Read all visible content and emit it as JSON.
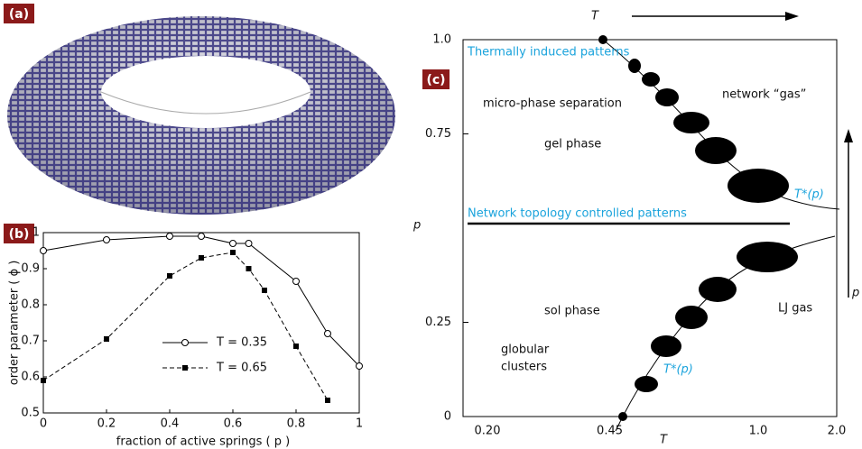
{
  "panel_a": {
    "label": "(a)"
  },
  "chart_data": {
    "type": "line",
    "panel_label": "(b)",
    "xlabel": "fraction of active springs ( p )",
    "ylabel": "order parameter ( ϕ )",
    "xlim": [
      0,
      1
    ],
    "xticks": [
      0,
      0.2,
      0.4,
      0.6,
      0.8,
      1
    ],
    "ylim": [
      0.5,
      1
    ],
    "yticks": [
      0.5,
      0.6,
      0.7,
      0.8,
      0.9,
      1
    ],
    "series": [
      {
        "name": "T = 0.35",
        "color": "#000000",
        "marker": "open-circle",
        "dash": false,
        "x": [
          0,
          0.2,
          0.4,
          0.5,
          0.6,
          0.65,
          0.8,
          0.9,
          1
        ],
        "values": [
          0.95,
          0.98,
          0.99,
          0.99,
          0.97,
          0.97,
          0.865,
          0.72,
          0.63
        ]
      },
      {
        "name": "T = 0.65",
        "color": "#000000",
        "marker": "filled-square",
        "dash": true,
        "x": [
          0,
          0.2,
          0.4,
          0.5,
          0.6,
          0.65,
          0.7,
          0.8,
          0.9
        ],
        "values": [
          0.59,
          0.705,
          0.88,
          0.93,
          0.945,
          0.9,
          0.84,
          0.685,
          0.535
        ]
      }
    ]
  },
  "panel_c": {
    "label": "(c)",
    "top_axis_label": "T",
    "x_axis_label": "T",
    "y_axis_label": "p",
    "right_axis_label": "p",
    "ylim": [
      0,
      1
    ],
    "yticks": [
      0,
      0.25,
      0.75,
      {
        "value": 1,
        "label": "1.0"
      }
    ],
    "xticks": [
      "0.20",
      "0.45",
      "1.0",
      "2.0"
    ],
    "annotations": {
      "thermal": "Thermally induced patterns",
      "micro": "micro-phase separation",
      "network_gas": "network “gas”",
      "gel": "gel phase",
      "tstar_upper": "T*(p)",
      "topology": "Network topology controlled patterns",
      "sol": "sol phase",
      "lj": "LJ gas",
      "globular": [
        "globular",
        "clusters"
      ],
      "tstar_lower": "T*(p)"
    }
  }
}
